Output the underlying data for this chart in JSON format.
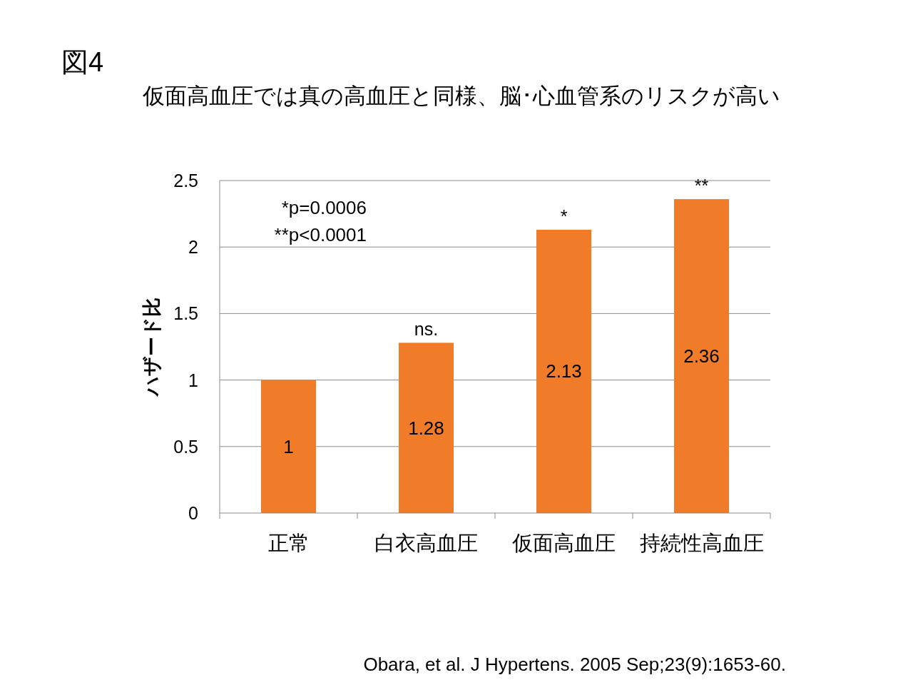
{
  "chart_data": {
    "type": "bar",
    "title": "図4",
    "subtitle": "仮面高血圧では真の高血圧と同様、脳･心血管系のリスクが高い",
    "ylabel": "ハザード比",
    "categories": [
      "正常",
      "白衣高血圧",
      "仮面高血圧",
      "持続性高血圧"
    ],
    "values": [
      1,
      1.28,
      2.13,
      2.36
    ],
    "color": "#f07c2a",
    "data_labels": true,
    "ylim": [
      0,
      2.5
    ],
    "yticks": [
      0,
      0.5,
      1,
      1.5,
      2,
      2.5
    ],
    "grid": "y",
    "annotations": [
      "*p=0.0006",
      "**p<0.0001",
      {
        "text": "ns.",
        "x": "白衣高血圧",
        "y": 1.28
      },
      {
        "text": "*",
        "x": "仮面高血圧",
        "y": 2.13
      },
      {
        "text": "**",
        "x": "持続性高血圧",
        "y": 2.36
      },
      "Obara, et al. J Hypertens. 2005 Sep;23(9):1653-60."
    ]
  }
}
